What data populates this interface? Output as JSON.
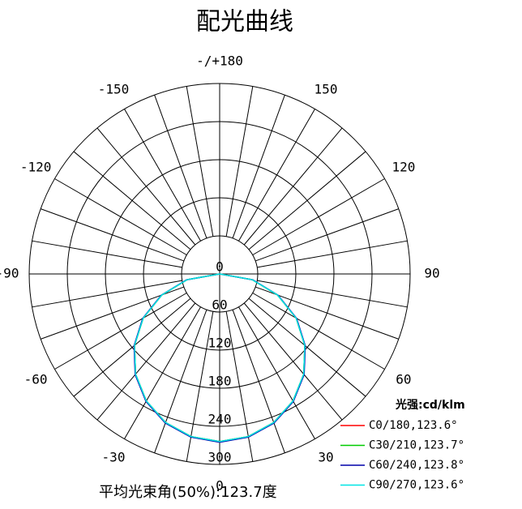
{
  "chart_data": {
    "type": "polar",
    "title": "配光曲线",
    "angles": [
      -90,
      -80,
      -70,
      -60,
      -50,
      -40,
      -30,
      -20,
      -10,
      0,
      10,
      20,
      30,
      40,
      50,
      60,
      70,
      80,
      90
    ],
    "series": [
      {
        "name": "C0/180,123.6°",
        "color": "#ff0000",
        "values": [
          0,
          52,
          97,
          139,
          175,
          206,
          231,
          249,
          260,
          264,
          260,
          249,
          231,
          206,
          175,
          139,
          97,
          52,
          0
        ]
      },
      {
        "name": "C30/210,123.7°",
        "color": "#00cc00",
        "values": [
          0,
          52,
          97,
          139,
          175,
          206,
          231,
          249,
          260,
          264,
          260,
          249,
          231,
          206,
          175,
          139,
          97,
          52,
          0
        ]
      },
      {
        "name": "C60/240,123.8°",
        "color": "#0000aa",
        "values": [
          0,
          53,
          98,
          140,
          176,
          207,
          232,
          250,
          261,
          265,
          261,
          250,
          232,
          207,
          176,
          140,
          98,
          53,
          0
        ]
      },
      {
        "name": "C90/270,123.6°",
        "color": "#00e5e5",
        "values": [
          0,
          52,
          97,
          139,
          175,
          206,
          231,
          249,
          260,
          264,
          260,
          249,
          231,
          206,
          175,
          139,
          97,
          52,
          0
        ]
      }
    ],
    "rlim": [
      0,
      300
    ],
    "rticks": [
      0,
      60,
      120,
      180,
      240,
      300
    ],
    "thetaticks": [
      0,
      30,
      60,
      90,
      120,
      150,
      {
        "value": 180,
        "label": "-/+180"
      },
      -150,
      -120,
      -90,
      -60,
      -30
    ],
    "legend_title": "光强:cd/klm",
    "annotation": "平均光束角(50%):123.7度"
  }
}
